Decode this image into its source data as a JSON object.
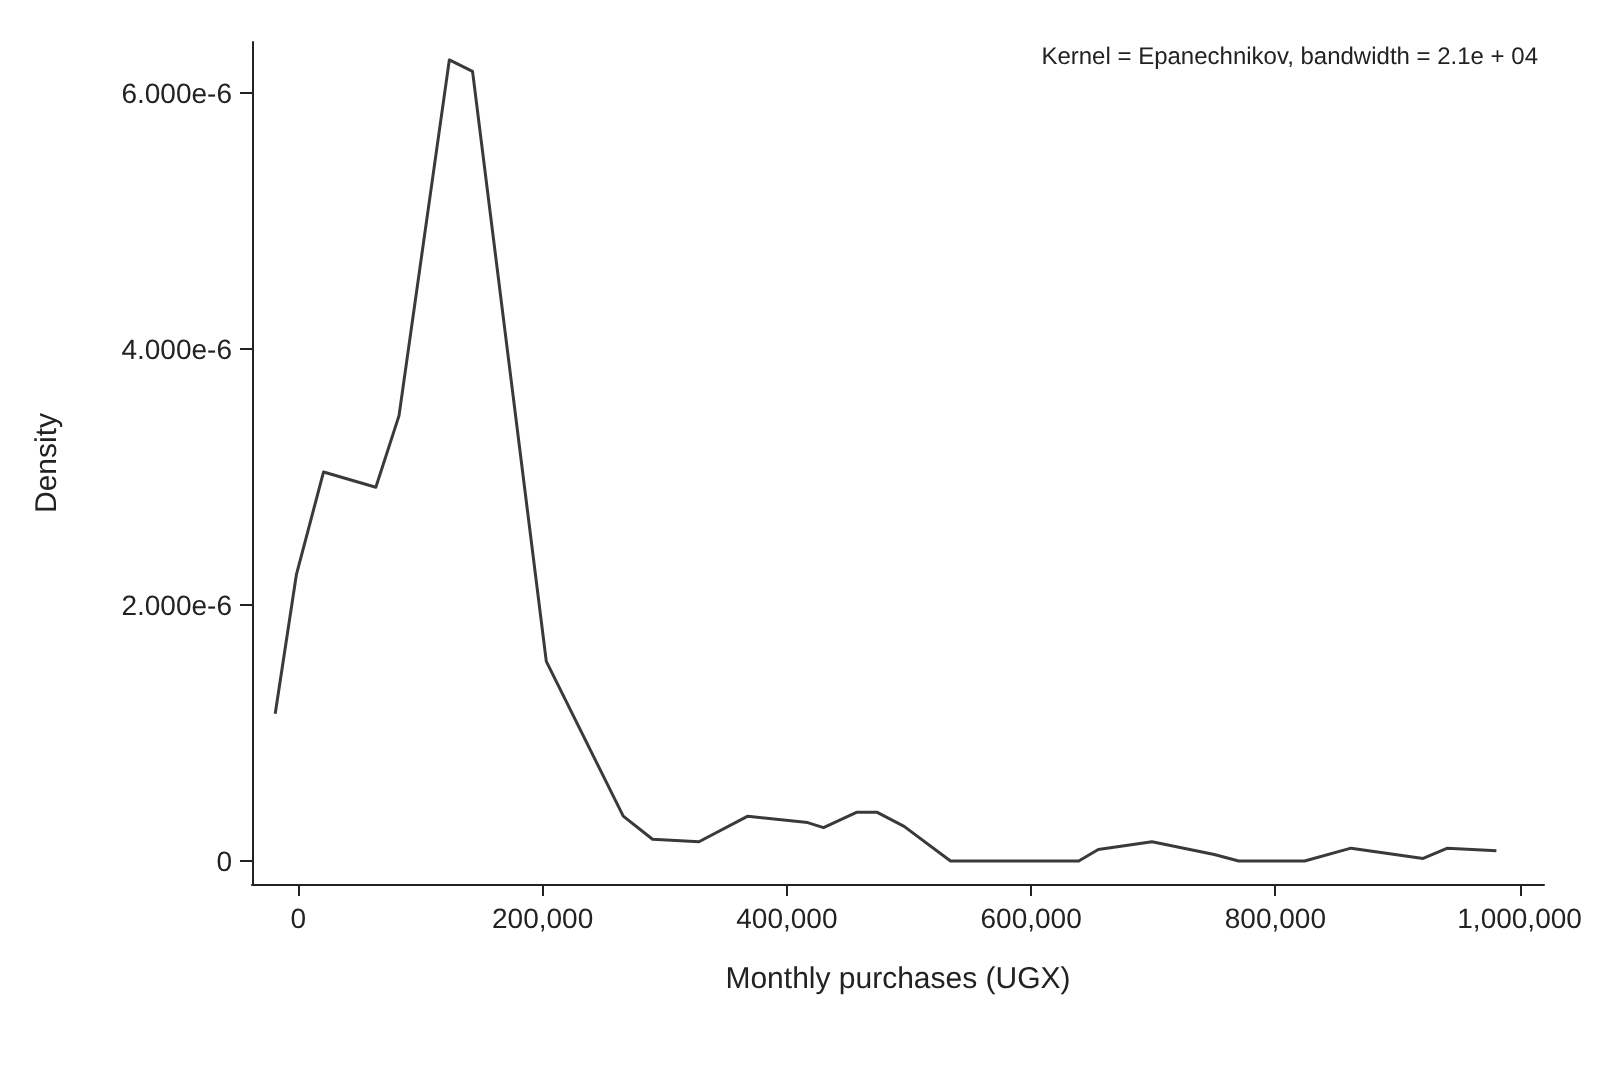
{
  "chart_data": {
    "type": "line",
    "xlabel": "Monthly purchases (UGX)",
    "ylabel": "Density",
    "annotations": [
      "Kernel = Epanechnikov, bandwidth = 2.1e + 04"
    ],
    "series": [
      {
        "color": "#3a3a3a",
        "x": [
          -19000,
          -1600,
          20600,
          63400,
          82400,
          123600,
          142600,
          203000,
          266000,
          290000,
          328000,
          368000,
          417000,
          430000,
          457000,
          474000,
          496000,
          534000,
          639000,
          655000,
          699000,
          750000,
          770000,
          824000,
          862000,
          921000,
          941000,
          981000
        ],
        "values": [
          1.15e-06,
          2.24e-06,
          3.04e-06,
          2.92e-06,
          3.48e-06,
          6.26e-06,
          6.17e-06,
          1.56e-06,
          3.5e-07,
          1.7e-07,
          1.5e-07,
          3.5e-07,
          3e-07,
          2.6e-07,
          3.8e-07,
          3.8e-07,
          2.7e-07,
          0,
          0,
          9e-08,
          1.5e-07,
          5e-08,
          0,
          0,
          1e-07,
          2e-08,
          1e-07,
          8e-08
        ]
      }
    ],
    "xlim": [
      -38000,
      1020000
    ],
    "ylim": [
      -1.8e-07,
      6.4e-06
    ],
    "xticks": [
      {
        "value": 0,
        "label": "0"
      },
      {
        "value": 200000,
        "label": "200,000"
      },
      {
        "value": 400000,
        "label": "400,000"
      },
      {
        "value": 600000,
        "label": "600,000"
      },
      {
        "value": 800000,
        "label": "800,000"
      },
      {
        "value": 1000000,
        "label": "1,000,000"
      }
    ],
    "yticks": [
      0,
      {
        "value": 2e-06,
        "label": "2.000e-6"
      },
      {
        "value": 4e-06,
        "label": "4.000e-6"
      },
      {
        "value": 6e-06,
        "label": "6.000e-6"
      }
    ],
    "grid": false,
    "marker": "none",
    "line_style": "solid"
  }
}
